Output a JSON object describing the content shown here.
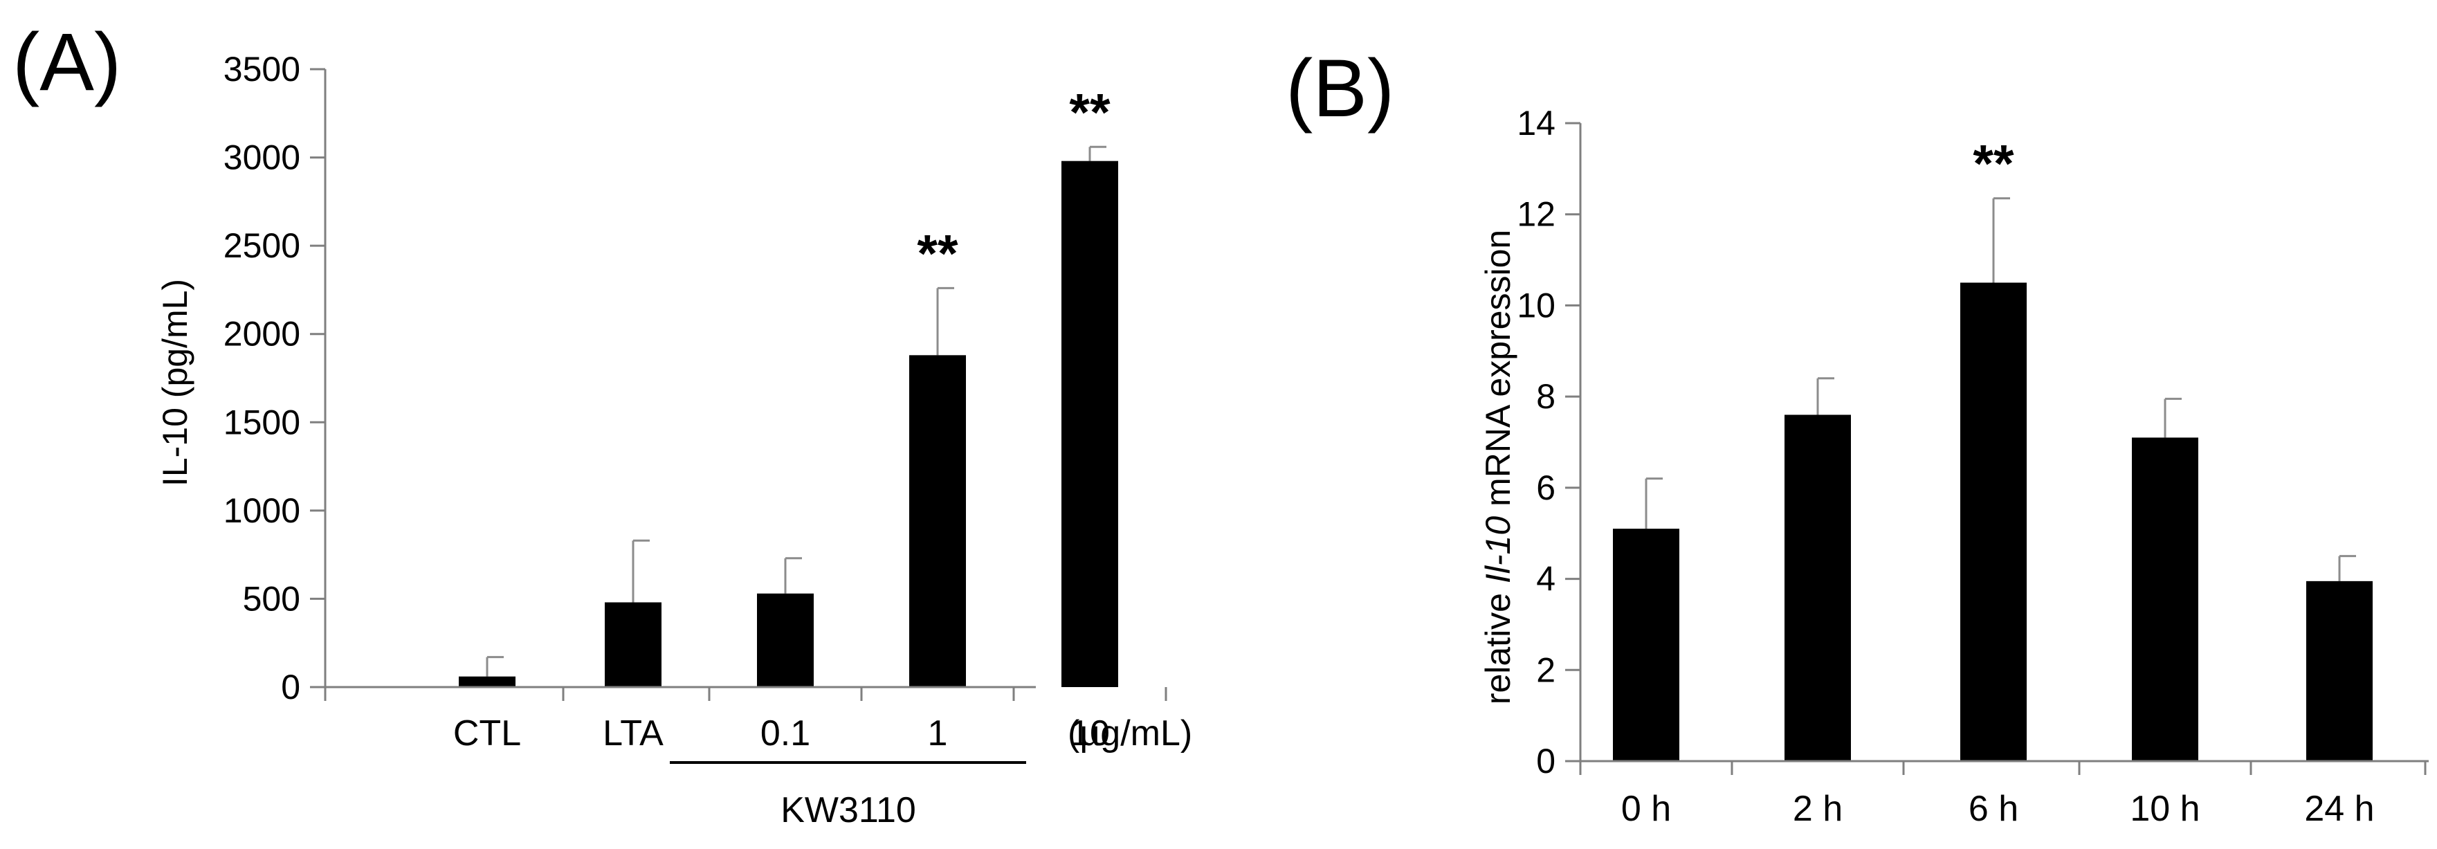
{
  "chart_data": [
    {
      "panel": "(A)",
      "type": "bar",
      "ylabel": "IL-10 (pg/mL)",
      "ylim": [
        0,
        3500
      ],
      "yticks": [
        0,
        500,
        1000,
        1500,
        2000,
        2500,
        3000,
        3500
      ],
      "categories": [
        "CTL",
        "LTA",
        "0.1",
        "1",
        "10"
      ],
      "values": [
        60,
        480,
        530,
        1880,
        2980
      ],
      "errors": [
        110,
        350,
        200,
        380,
        80
      ],
      "significance": [
        "",
        "",
        "",
        "**",
        "**"
      ],
      "unit_label": "(µg/mL)",
      "group_label": "KW3110"
    },
    {
      "panel": "(B)",
      "type": "bar",
      "ylabel_parts": [
        "relative ",
        "Il-10",
        " mRNA expression"
      ],
      "ylim": [
        0,
        14
      ],
      "yticks": [
        0,
        2,
        4,
        6,
        8,
        10,
        12,
        14
      ],
      "categories": [
        "0 h",
        "2 h",
        "6 h",
        "10 h",
        "24 h"
      ],
      "values": [
        5.1,
        7.6,
        10.5,
        7.1,
        3.95
      ],
      "errors": [
        1.1,
        0.8,
        1.85,
        0.85,
        0.55
      ],
      "significance": [
        "",
        "",
        "**",
        "",
        ""
      ]
    }
  ]
}
